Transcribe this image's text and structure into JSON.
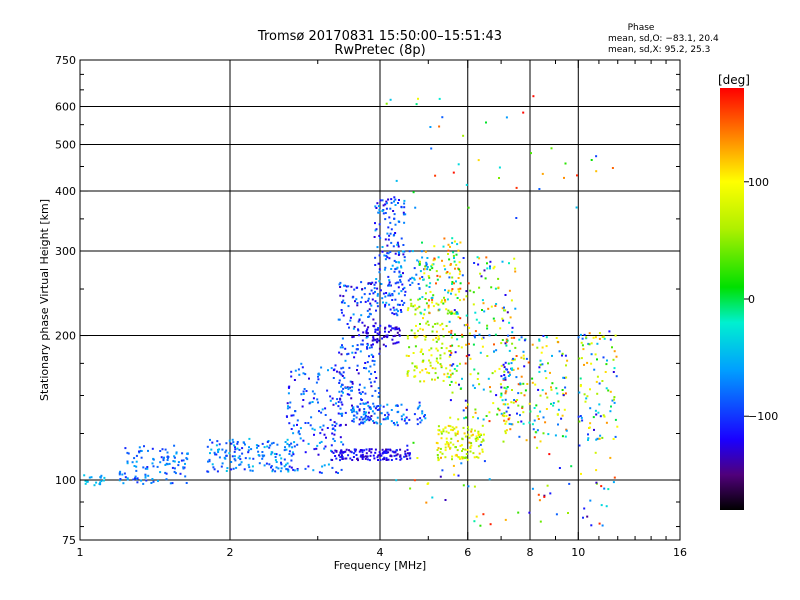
{
  "chart_data": {
    "type": "scatter",
    "title_line1": "Tromsø 20170831 15:50:00–15:51:43",
    "title_line2": "RwPretec (8p)",
    "xlabel": "Frequency [MHz]",
    "ylabel": "Stationary phase Virtual Height [km]",
    "x_scale": "log2",
    "y_scale": "log",
    "xlim": [
      1,
      16
    ],
    "ylim": [
      75,
      750
    ],
    "x_ticks": [
      1,
      2,
      4,
      6,
      8,
      10,
      16
    ],
    "x_tick_labels": [
      "1",
      "2",
      "4",
      "6",
      "8",
      "10",
      "16"
    ],
    "x_minor_ticks": [
      3,
      5,
      7,
      9,
      11,
      12,
      13,
      14,
      15
    ],
    "y_ticks": [
      75,
      100,
      200,
      300,
      400,
      500,
      600,
      750
    ],
    "y_tick_labels": [
      "75",
      "100",
      "200",
      "300",
      "400",
      "500",
      "600",
      "750"
    ],
    "y_minor_ticks": [
      80,
      90,
      125,
      150,
      175,
      250,
      350,
      450,
      550,
      650,
      700
    ],
    "x_grid": [
      2,
      4,
      6,
      8,
      10
    ],
    "y_grid": [
      100,
      200,
      300,
      400,
      500,
      600
    ],
    "grid": true,
    "phase_stats": {
      "title": "Phase",
      "line_o": "mean, sd,O: −83.1, 20.4",
      "line_x": "mean, sd,X:  95.2, 25.3"
    },
    "colorbar": {
      "label": "[deg]",
      "range": [
        -180,
        180
      ],
      "tick_values": [
        100,
        0,
        -100
      ],
      "tick_labels": [
        "100",
        "0",
        "−100"
      ],
      "stops": [
        {
          "v": -180,
          "color": "#000000"
        },
        {
          "v": -150,
          "color": "#50007a"
        },
        {
          "v": -120,
          "color": "#1a00ff"
        },
        {
          "v": -60,
          "color": "#00a0ff"
        },
        {
          "v": -20,
          "color": "#00f0d0"
        },
        {
          "v": 10,
          "color": "#00e000"
        },
        {
          "v": 60,
          "color": "#b0f000"
        },
        {
          "v": 100,
          "color": "#ffff00"
        },
        {
          "v": 140,
          "color": "#ff8000"
        },
        {
          "v": 180,
          "color": "#ff0000"
        }
      ]
    },
    "clusters": [
      {
        "f": [
          1.0,
          1.12
        ],
        "h": [
          97,
          103
        ],
        "phase": [
          -70,
          -30
        ],
        "n": 18
      },
      {
        "f": [
          1.2,
          1.65
        ],
        "h": [
          98,
          118
        ],
        "phase": [
          -110,
          -50
        ],
        "n": 110
      },
      {
        "f": [
          1.8,
          2.7
        ],
        "h": [
          104,
          122
        ],
        "phase": [
          -110,
          -40
        ],
        "n": 150
      },
      {
        "f": [
          2.6,
          3.4
        ],
        "h": [
          103,
          175
        ],
        "phase": [
          -130,
          -50
        ],
        "n": 160
      },
      {
        "f": [
          3.2,
          4.6
        ],
        "h": [
          110,
          116
        ],
        "phase": [
          -140,
          -100
        ],
        "n": 140
      },
      {
        "f": [
          3.3,
          4.0
        ],
        "h": [
          130,
          260
        ],
        "phase": [
          -140,
          -60
        ],
        "n": 230
      },
      {
        "f": [
          3.7,
          4.4
        ],
        "h": [
          190,
          210
        ],
        "phase": [
          -140,
          -110
        ],
        "n": 60
      },
      {
        "f": [
          3.9,
          4.5
        ],
        "h": [
          220,
          390
        ],
        "phase": [
          -130,
          -50
        ],
        "n": 170
      },
      {
        "f": [
          3.5,
          5.0
        ],
        "h": [
          130,
          145
        ],
        "phase": [
          -120,
          -50
        ],
        "n": 90
      },
      {
        "f": [
          4.3,
          5.0
        ],
        "h": [
          250,
          300
        ],
        "phase": [
          -100,
          -40
        ],
        "n": 40
      },
      {
        "f": [
          4.5,
          5.6
        ],
        "h": [
          160,
          240
        ],
        "phase": [
          30,
          120
        ],
        "n": 130
      },
      {
        "f": [
          4.8,
          5.8
        ],
        "h": [
          220,
          320
        ],
        "phase": [
          -60,
          160
        ],
        "n": 100
      },
      {
        "f": [
          5.2,
          6.5
        ],
        "h": [
          110,
          130
        ],
        "phase": [
          40,
          130
        ],
        "n": 120
      },
      {
        "f": [
          5.5,
          7.5
        ],
        "h": [
          130,
          300
        ],
        "phase": [
          -140,
          170
        ],
        "n": 220
      },
      {
        "f": [
          7.0,
          9.5
        ],
        "h": [
          120,
          200
        ],
        "phase": [
          -120,
          160
        ],
        "n": 170
      },
      {
        "f": [
          10.0,
          12.0
        ],
        "h": [
          120,
          205
        ],
        "phase": [
          -130,
          140
        ],
        "n": 100
      },
      {
        "f": [
          4.0,
          12.0
        ],
        "h": [
          80,
          120
        ],
        "phase": [
          -150,
          180
        ],
        "n": 70
      },
      {
        "f": [
          4.0,
          12.0
        ],
        "h": [
          350,
          650
        ],
        "phase": [
          -100,
          180
        ],
        "n": 40
      }
    ]
  }
}
